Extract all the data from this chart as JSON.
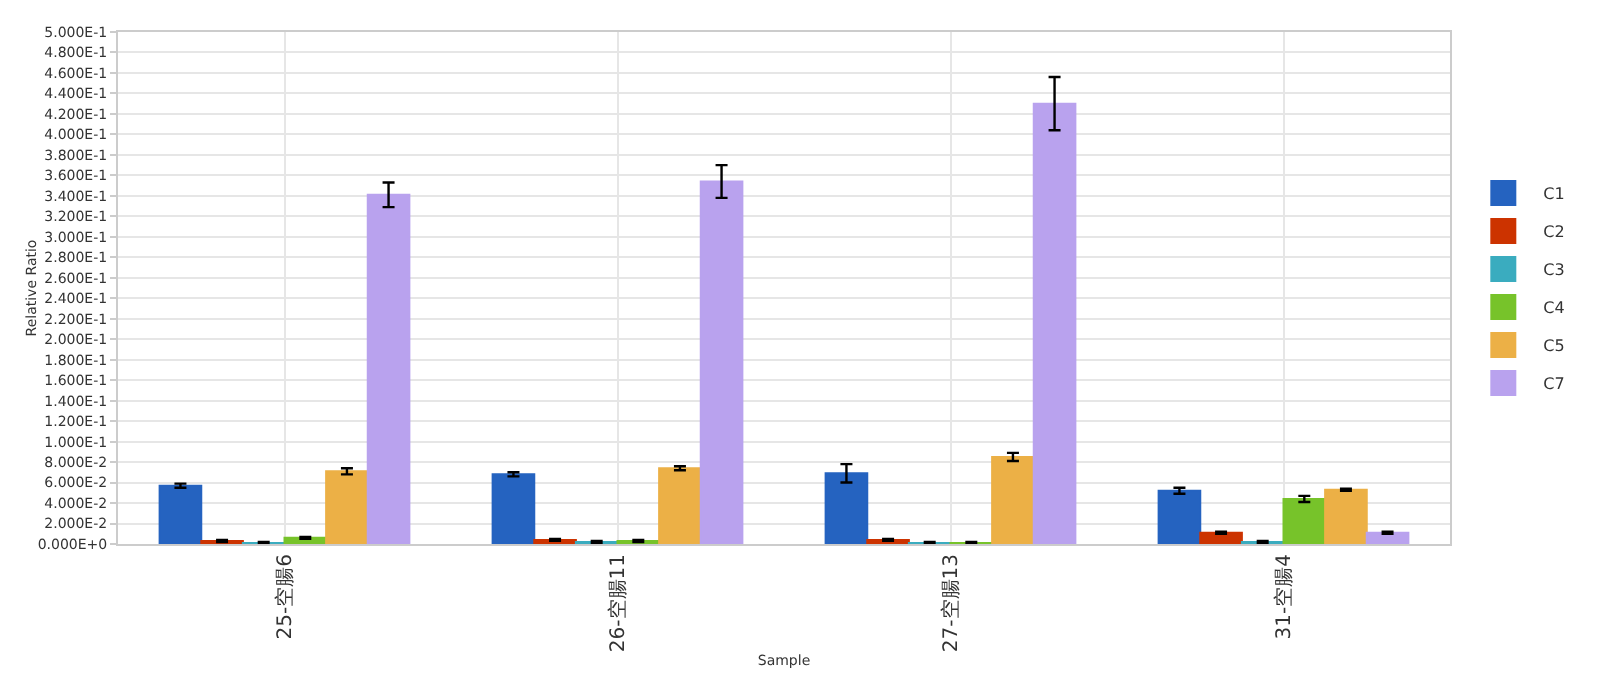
{
  "chart_data": {
    "type": "bar",
    "xlabel": "Sample",
    "ylabel": "Relative Ratio",
    "categories": [
      "25-空腸6",
      "26-空腸11",
      "27-空腸13",
      "31-空腸4"
    ],
    "series": [
      {
        "name": "C1",
        "color": "#2563c0",
        "values": [
          0.057,
          0.068,
          0.069,
          0.052
        ],
        "errors": [
          0.002,
          0.002,
          0.009,
          0.003
        ]
      },
      {
        "name": "C2",
        "color": "#cc3300",
        "values": [
          0.003,
          0.004,
          0.004,
          0.011
        ],
        "errors": [
          0.001,
          0.001,
          0.001,
          0.001
        ]
      },
      {
        "name": "C3",
        "color": "#3aacbf",
        "values": [
          0.001,
          0.002,
          0.001,
          0.002
        ],
        "errors": [
          0.001,
          0.001,
          0.001,
          0.001
        ]
      },
      {
        "name": "C4",
        "color": "#77c32a",
        "values": [
          0.006,
          0.003,
          0.001,
          0.044
        ],
        "errors": [
          0.001,
          0.001,
          0.001,
          0.003
        ]
      },
      {
        "name": "C5",
        "color": "#ecb046",
        "values": [
          0.071,
          0.074,
          0.085,
          0.053
        ],
        "errors": [
          0.003,
          0.002,
          0.004,
          0.001
        ]
      },
      {
        "name": "C7",
        "color": "#b9a2ee",
        "values": [
          0.341,
          0.354,
          0.43,
          0.011
        ],
        "errors": [
          0.012,
          0.016,
          0.026,
          0.001
        ]
      }
    ],
    "ylim": [
      0,
      0.5
    ],
    "yticks": [
      {
        "value": 0,
        "label": "0.000E+0"
      },
      {
        "value": 0.02,
        "label": "2.000E-2"
      },
      {
        "value": 0.04,
        "label": "4.000E-2"
      },
      {
        "value": 0.06,
        "label": "6.000E-2"
      },
      {
        "value": 0.08,
        "label": "8.000E-2"
      },
      {
        "value": 0.1,
        "label": "1.000E-1"
      },
      {
        "value": 0.12,
        "label": "1.200E-1"
      },
      {
        "value": 0.14,
        "label": "1.400E-1"
      },
      {
        "value": 0.16,
        "label": "1.600E-1"
      },
      {
        "value": 0.18,
        "label": "1.800E-1"
      },
      {
        "value": 0.2,
        "label": "2.000E-1"
      },
      {
        "value": 0.22,
        "label": "2.200E-1"
      },
      {
        "value": 0.24,
        "label": "2.400E-1"
      },
      {
        "value": 0.26,
        "label": "2.600E-1"
      },
      {
        "value": 0.28,
        "label": "2.800E-1"
      },
      {
        "value": 0.3,
        "label": "3.000E-1"
      },
      {
        "value": 0.32,
        "label": "3.200E-1"
      },
      {
        "value": 0.34,
        "label": "3.400E-1"
      },
      {
        "value": 0.36,
        "label": "3.600E-1"
      },
      {
        "value": 0.38,
        "label": "3.800E-1"
      },
      {
        "value": 0.4,
        "label": "4.000E-1"
      },
      {
        "value": 0.42,
        "label": "4.200E-1"
      },
      {
        "value": 0.44,
        "label": "4.400E-1"
      },
      {
        "value": 0.46,
        "label": "4.600E-1"
      },
      {
        "value": 0.48,
        "label": "4.800E-1"
      },
      {
        "value": 0.5,
        "label": "5.000E-1"
      }
    ],
    "grid": true,
    "legend": "right"
  }
}
